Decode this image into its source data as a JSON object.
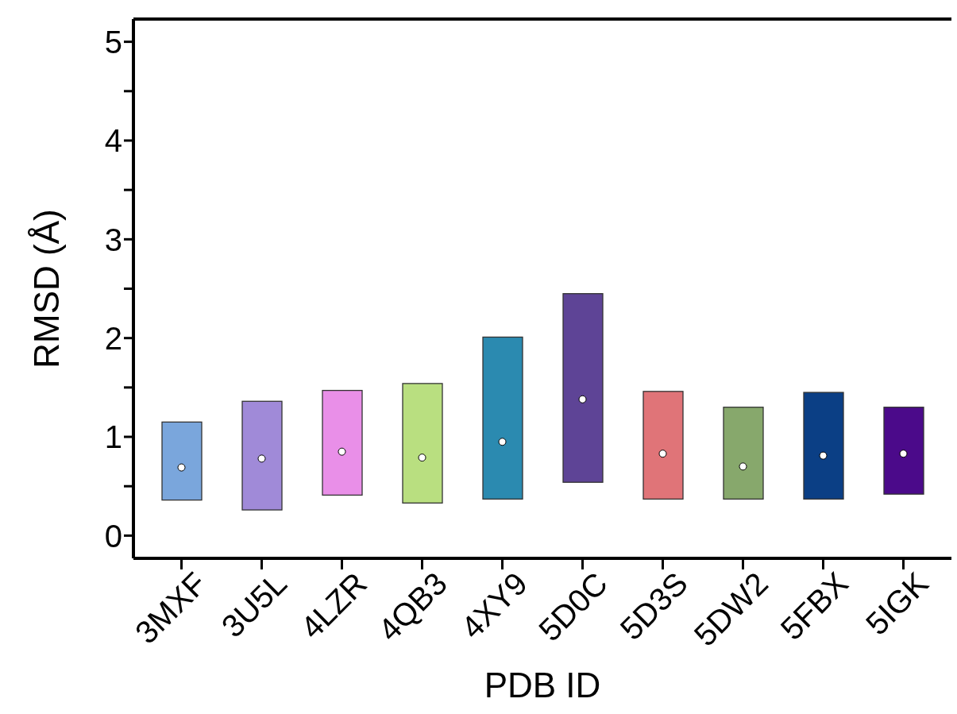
{
  "chart_data": {
    "type": "bar",
    "xlabel": "PDB ID",
    "ylabel": "RMSD (Å)",
    "categories": [
      "3MXF",
      "3U5L",
      "4LZR",
      "4QB3",
      "4XY9",
      "5D0C",
      "5D3S",
      "5DW2",
      "5FBX",
      "5IGK"
    ],
    "series": [
      {
        "type": "bar",
        "base": [
          0.36,
          0.26,
          0.41,
          0.33,
          0.37,
          0.54,
          0.37,
          0.37,
          0.37,
          0.42
        ],
        "values": [
          0.79,
          1.1,
          1.06,
          1.21,
          1.64,
          1.91,
          1.09,
          0.93,
          1.08,
          0.88
        ],
        "colors": [
          "#7aa6dc",
          "#a08ad8",
          "#e98fe8",
          "#b9df80",
          "#2b8ab0",
          "#5e4496",
          "#e07478",
          "#87a86c",
          "#0b3f85",
          "#4b0a8a"
        ]
      },
      {
        "type": "scatter",
        "x": [
          "3MXF",
          "3U5L",
          "4LZR",
          "4QB3",
          "4XY9",
          "5D0C",
          "5D3S",
          "5DW2",
          "5FBX",
          "5IGK"
        ],
        "values": [
          0.69,
          0.78,
          0.85,
          0.79,
          0.95,
          1.38,
          0.83,
          0.7,
          0.81,
          0.83
        ],
        "color": "#ffffff",
        "marker": "circle"
      }
    ],
    "ylim": [
      -0.23,
      5.23
    ],
    "yticks": [
      0,
      {
        "value": 0.5,
        "label": null
      },
      1,
      {
        "value": 1.5,
        "label": null
      },
      2,
      {
        "value": 2.5,
        "label": null
      },
      3,
      {
        "value": 3.5,
        "label": null
      },
      4,
      {
        "value": 4.5,
        "label": null
      },
      5
    ],
    "grid": false,
    "legend": false
  }
}
